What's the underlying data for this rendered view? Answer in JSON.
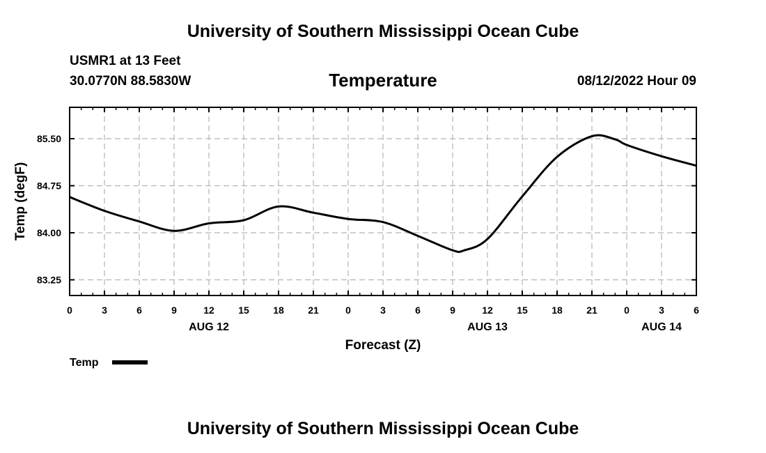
{
  "header": {
    "title": "University of Southern Mississippi Ocean Cube",
    "station": "USMR1 at 13 Feet",
    "location": "30.0770N  88.5830W",
    "variable": "Temperature",
    "datetime": "08/12/2022 Hour 09"
  },
  "footer": {
    "title": "University of Southern Mississippi Ocean Cube"
  },
  "colors": {
    "line": "#000000",
    "grid": "#b4b4b4",
    "axis": "#000000"
  },
  "chart_data": {
    "type": "line",
    "title": "Temperature",
    "xlabel": "Forecast (Z)",
    "ylabel": "Temp (degF)",
    "x_unit": "forecast hours from AUG 12 00Z",
    "xlim": [
      0,
      54
    ],
    "ylim": [
      83.0,
      86.0
    ],
    "grid": true,
    "y_ticks": [
      83.25,
      84.0,
      84.75,
      85.5
    ],
    "y_tick_labels": [
      "83.25",
      "84.00",
      "84.75",
      "85.50"
    ],
    "x_ticks": [
      0,
      3,
      6,
      9,
      12,
      15,
      18,
      21,
      24,
      27,
      30,
      33,
      36,
      39,
      42,
      45,
      48,
      51,
      54
    ],
    "x_tick_labels": [
      "0",
      "3",
      "6",
      "9",
      "12",
      "15",
      "18",
      "21",
      "0",
      "3",
      "6",
      "9",
      "12",
      "15",
      "18",
      "21",
      "0",
      "3",
      "6"
    ],
    "date_labels": [
      {
        "x": 12,
        "label": "AUG 12"
      },
      {
        "x": 36,
        "label": "AUG 13"
      },
      {
        "x": 51,
        "label": "AUG 14"
      }
    ],
    "legend": {
      "position": "bottom-left",
      "label": "Temp"
    },
    "series": [
      {
        "name": "Temp",
        "x": [
          0,
          3,
          6,
          9,
          12,
          15,
          18,
          21,
          24,
          27,
          30,
          33,
          34,
          36,
          39,
          42,
          45,
          47,
          48,
          51,
          54
        ],
        "values": [
          84.57,
          84.35,
          84.18,
          84.03,
          84.15,
          84.2,
          84.42,
          84.32,
          84.22,
          84.17,
          83.95,
          83.72,
          83.72,
          83.9,
          84.58,
          85.21,
          85.54,
          85.49,
          85.4,
          85.22,
          85.07
        ]
      }
    ]
  }
}
